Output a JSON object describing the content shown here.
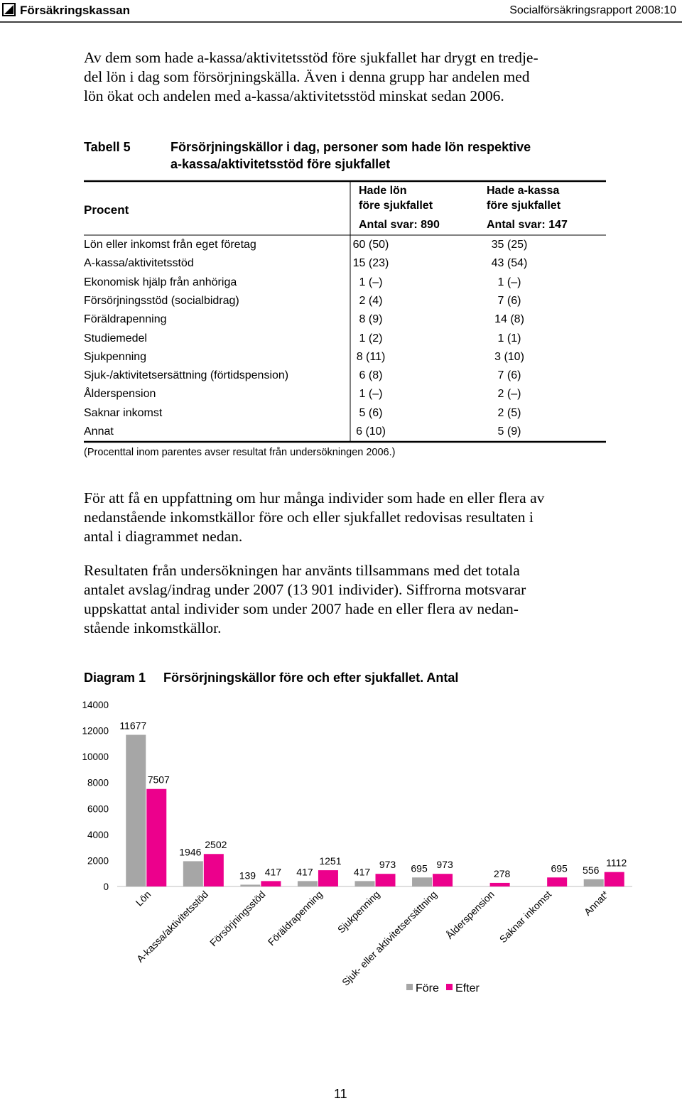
{
  "header": {
    "brand": "Försäkringskassan",
    "report": "Socialförsäkringsrapport 2008:10"
  },
  "intro": [
    "Av dem som hade a-kassa/aktivitetsstöd före sjukfallet har drygt en tredje-",
    "del lön i dag som försörjningskälla. Även i denna grupp har andelen med",
    "lön ökat och andelen med a-kassa/aktivitetsstöd minskat sedan 2006."
  ],
  "table": {
    "label": "Tabell 5",
    "title": [
      "Försörjningskällor i dag, personer som hade lön respektive",
      "a-kassa/aktivitetsstöd före sjukfallet"
    ],
    "unit": "Procent",
    "columns": [
      {
        "name": [
          "Hade lön",
          "före sjukfallet"
        ],
        "count": "Antal svar: 890"
      },
      {
        "name": [
          "Hade a-kassa",
          "före sjukfallet"
        ],
        "count": "Antal svar: 147"
      }
    ],
    "rows": [
      [
        "Lön eller inkomst från eget företag",
        "60 (50)",
        "35 (25)"
      ],
      [
        "A-kassa/aktivitetsstöd",
        "15 (23)",
        "43 (54)"
      ],
      [
        "Ekonomisk hjälp från anhöriga",
        "1 (–)",
        "1 (–)"
      ],
      [
        "Försörjningsstöd (socialbidrag)",
        "2 (4)",
        "7 (6)"
      ],
      [
        "Föräldrapenning",
        "8 (9)",
        "14 (8)"
      ],
      [
        "Studiemedel",
        "1 (2)",
        "1 (1)"
      ],
      [
        "Sjukpenning",
        "8 (11)",
        "3 (10)"
      ],
      [
        "Sjuk-/aktivitetsersättning (förtidspension)",
        "6 (8)",
        "7 (6)"
      ],
      [
        "Ålderspension",
        "1 (–)",
        "2 (–)"
      ],
      [
        "Saknar inkomst",
        "5 (6)",
        "2 (5)"
      ],
      [
        "Annat",
        "6 (10)",
        "5 (9)"
      ]
    ],
    "note": "(Procenttal inom parentes avser resultat från undersökningen 2006.)"
  },
  "paragraphs": [
    [
      "För att få en uppfattning om hur många individer som hade en eller flera av",
      "nedanstående inkomstkällor före och eller sjukfallet redovisas resultaten i",
      "antal i diagrammet nedan."
    ],
    [
      "Resultaten från undersökningen har använts tillsammans med det totala",
      "antalet avslag/indrag under 2007 (13 901 individer). Siffrorna motsvarar",
      "uppskattat antal individer som under 2007 hade en eller flera av nedan-",
      "stående inkomstkällor."
    ]
  ],
  "chart_data": {
    "type": "bar",
    "label": "Diagram 1",
    "title": "Försörjningskällor före och efter sjukfallet. Antal",
    "categories": [
      "Lön",
      "A-kassa/aktivitetsstöd",
      "Försörjningsstöd",
      "Föräldrapenning",
      "Sjukpenning",
      "Sjuk- eller aktivitetsersättning",
      "Ålderspension",
      "Saknar inkomst",
      "Annat*"
    ],
    "series": [
      {
        "name": "Före",
        "color": "#a6a6a6",
        "values": [
          11677,
          1946,
          139,
          417,
          417,
          695,
          null,
          null,
          556
        ]
      },
      {
        "name": "Efter",
        "color": "#ec008c",
        "values": [
          7507,
          2502,
          417,
          1251,
          973,
          973,
          278,
          695,
          1112
        ]
      }
    ],
    "ylim": [
      0,
      14000
    ],
    "yticks": [
      0,
      2000,
      4000,
      6000,
      8000,
      10000,
      12000,
      14000
    ],
    "grid": false,
    "legend": "bottom"
  },
  "page_number": "11"
}
